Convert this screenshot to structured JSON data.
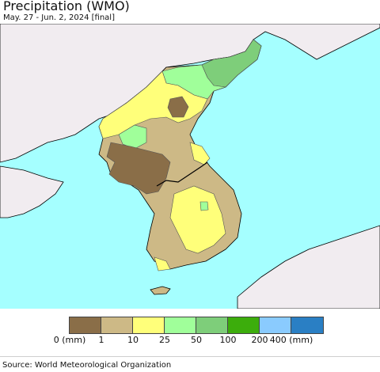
{
  "header": {
    "title": "Precipitation (WMO)",
    "subtitle": "May. 27 - Jun. 2, 2024 [final]"
  },
  "map": {
    "ocean_color": "#a5ffff",
    "land_color": "#f1ecf0",
    "region": "Korean Peninsula",
    "class_colors": {
      "0-1": "#8a6e48",
      "1-10": "#cdb986",
      "10-25": "#ffff7a",
      "25-50": "#a0ff9a",
      "50-100": "#7ece7a",
      "100-200": "#3cad0c",
      "200-400": "#8acbfe",
      "400+": "#2a7fc4"
    }
  },
  "legend": {
    "colors": [
      "#8a6e48",
      "#cdb986",
      "#ffff7a",
      "#a0ff9a",
      "#7ece7a",
      "#3cad0c",
      "#8acbfe",
      "#2a7fc4"
    ],
    "labels": [
      "0 (mm)",
      "1",
      "10",
      "25",
      "50",
      "100",
      "200",
      "400 (mm)"
    ]
  },
  "footer": {
    "source": "Source: World Meteorological Organization"
  }
}
